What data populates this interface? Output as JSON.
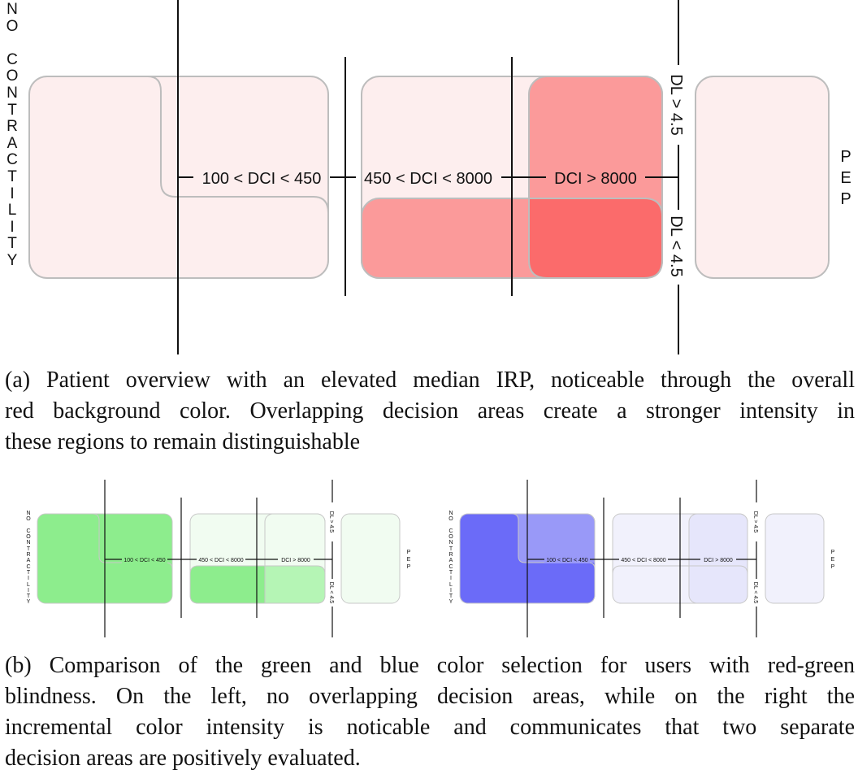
{
  "figure_a": {
    "left_axis_label": "NO CONTRACTILITY",
    "right_label": "PEP",
    "dci_labels": [
      "100 < DCI < 450",
      "450 < DCI < 8000",
      "DCI > 8000"
    ],
    "dl_labels": [
      "DL > 4.5",
      "DL < 4.5"
    ],
    "colors": {
      "base": "#fdeeee",
      "single": "#fb9a9a",
      "overlap": "#fb6b6b",
      "border": "#bdbdbd"
    }
  },
  "caption_a": "(a) Patient overview with an elevated median IRP, noticeable through the overall red background color. Overlapping decision areas create a stronger intensity in these regions to remain distinguishable",
  "figure_b": {
    "left_axis_label": "NO CONTRACTILITY",
    "right_label": "PEP",
    "dci_labels": [
      "100 < DCI < 450",
      "450 < DCI < 8000",
      "DCI > 8000"
    ],
    "dl_labels": [
      "DL > 4.5",
      "DL < 4.5"
    ],
    "green": {
      "light": "#f1fcf1",
      "mid": "#b5f5b5",
      "strong": "#8ded8d",
      "border": "#c8c8c8"
    },
    "blue": {
      "light": "#f1f1fc",
      "mid": "#e6e6fb",
      "strong": "#9999f8",
      "strongest": "#6b6bf8",
      "border": "#c8c8c8"
    }
  },
  "caption_b": "(b) Comparison of the green and blue color selection for users with red-green blindness. On the left, no overlapping decision areas, while on the right the incremental color intensity is noticable and communicates that two separate decision areas are positively evaluated."
}
